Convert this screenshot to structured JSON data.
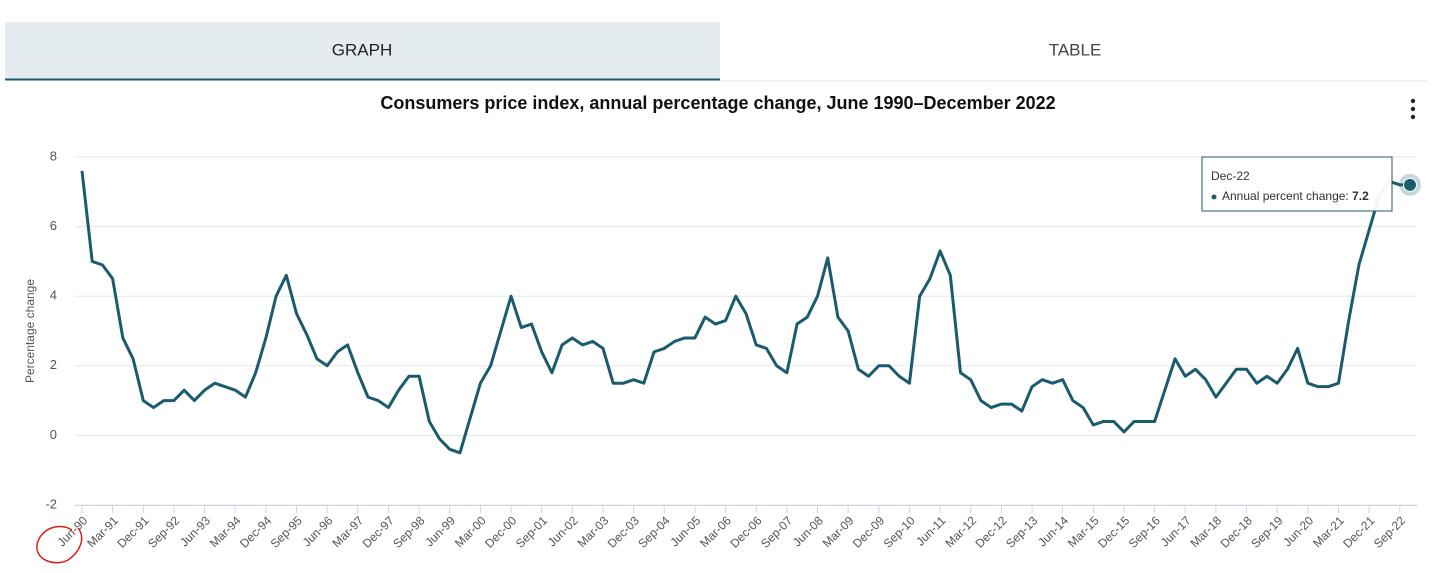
{
  "tabs": [
    "GRAPH",
    "TABLE"
  ],
  "chart_data": {
    "type": "line",
    "title": "Consumers price index, annual percentage change, June 1990–December 2022",
    "y_label": "Percentage change",
    "color": "#1a5b6e",
    "ylim": [
      -2,
      8
    ],
    "yticks": [
      -2,
      0,
      2,
      4,
      6,
      8
    ],
    "grid": true,
    "categories": [
      "Jun-90",
      null,
      null,
      "Mar-91",
      null,
      null,
      "Dec-91",
      null,
      null,
      "Sep-92",
      null,
      null,
      "Jun-93",
      null,
      null,
      "Mar-94",
      null,
      null,
      "Dec-94",
      null,
      null,
      "Sep-95",
      null,
      null,
      "Jun-96",
      null,
      null,
      "Mar-97",
      null,
      null,
      "Dec-97",
      null,
      null,
      "Sep-98",
      null,
      null,
      "Jun-99",
      null,
      null,
      "Mar-00",
      null,
      null,
      "Dec-00",
      null,
      null,
      "Sep-01",
      null,
      null,
      "Jun-02",
      null,
      null,
      "Mar-03",
      null,
      null,
      "Dec-03",
      null,
      null,
      "Sep-04",
      null,
      null,
      "Jun-05",
      null,
      null,
      "Mar-06",
      null,
      null,
      "Dec-06",
      null,
      null,
      "Sep-07",
      null,
      null,
      "Jun-08",
      null,
      null,
      "Mar-09",
      null,
      null,
      "Dec-09",
      null,
      null,
      "Sep-10",
      null,
      null,
      "Jun-11",
      null,
      null,
      "Mar-12",
      null,
      null,
      "Dec-12",
      null,
      null,
      "Sep-13",
      null,
      null,
      "Jun-14",
      null,
      null,
      "Mar-15",
      null,
      null,
      "Dec-15",
      null,
      null,
      "Sep-16",
      null,
      null,
      "Jun-17",
      null,
      null,
      "Mar-18",
      null,
      null,
      "Dec-18",
      null,
      null,
      "Sep-19",
      null,
      null,
      "Jun-20",
      null,
      null,
      "Mar-21",
      null,
      null,
      "Dec-21",
      null,
      null,
      "Sep-22",
      null
    ],
    "values": [
      7.6,
      5.0,
      4.9,
      4.5,
      2.8,
      2.2,
      1.0,
      0.8,
      1.0,
      1.0,
      1.3,
      1.0,
      1.3,
      1.5,
      1.4,
      1.3,
      1.1,
      1.8,
      2.8,
      4.0,
      4.6,
      3.5,
      2.9,
      2.2,
      2.0,
      2.4,
      2.6,
      1.8,
      1.1,
      1.0,
      0.8,
      1.3,
      1.7,
      1.7,
      0.4,
      -0.1,
      -0.4,
      -0.5,
      0.5,
      1.5,
      2.0,
      3.0,
      4.0,
      3.1,
      3.2,
      2.4,
      1.8,
      2.6,
      2.8,
      2.6,
      2.7,
      2.5,
      1.5,
      1.5,
      1.6,
      1.5,
      2.4,
      2.5,
      2.7,
      2.8,
      2.8,
      3.4,
      3.2,
      3.3,
      4.0,
      3.5,
      2.6,
      2.5,
      2.0,
      1.8,
      3.2,
      3.4,
      4.0,
      5.1,
      3.4,
      3.0,
      1.9,
      1.7,
      2.0,
      2.0,
      1.7,
      1.5,
      4.0,
      4.5,
      5.3,
      4.6,
      1.8,
      1.6,
      1.0,
      0.8,
      0.9,
      0.9,
      0.7,
      1.4,
      1.6,
      1.5,
      1.6,
      1.0,
      0.8,
      0.3,
      0.4,
      0.4,
      0.1,
      0.4,
      0.4,
      0.4,
      1.3,
      2.2,
      1.7,
      1.9,
      1.6,
      1.1,
      1.5,
      1.9,
      1.9,
      1.5,
      1.7,
      1.5,
      1.9,
      2.5,
      1.5,
      1.4,
      1.4,
      1.5,
      3.3,
      4.9,
      5.9,
      6.9,
      7.3,
      7.2,
      7.2
    ],
    "tooltip": {
      "date": "Dec-22",
      "label": "Annual percent change:"
    }
  }
}
